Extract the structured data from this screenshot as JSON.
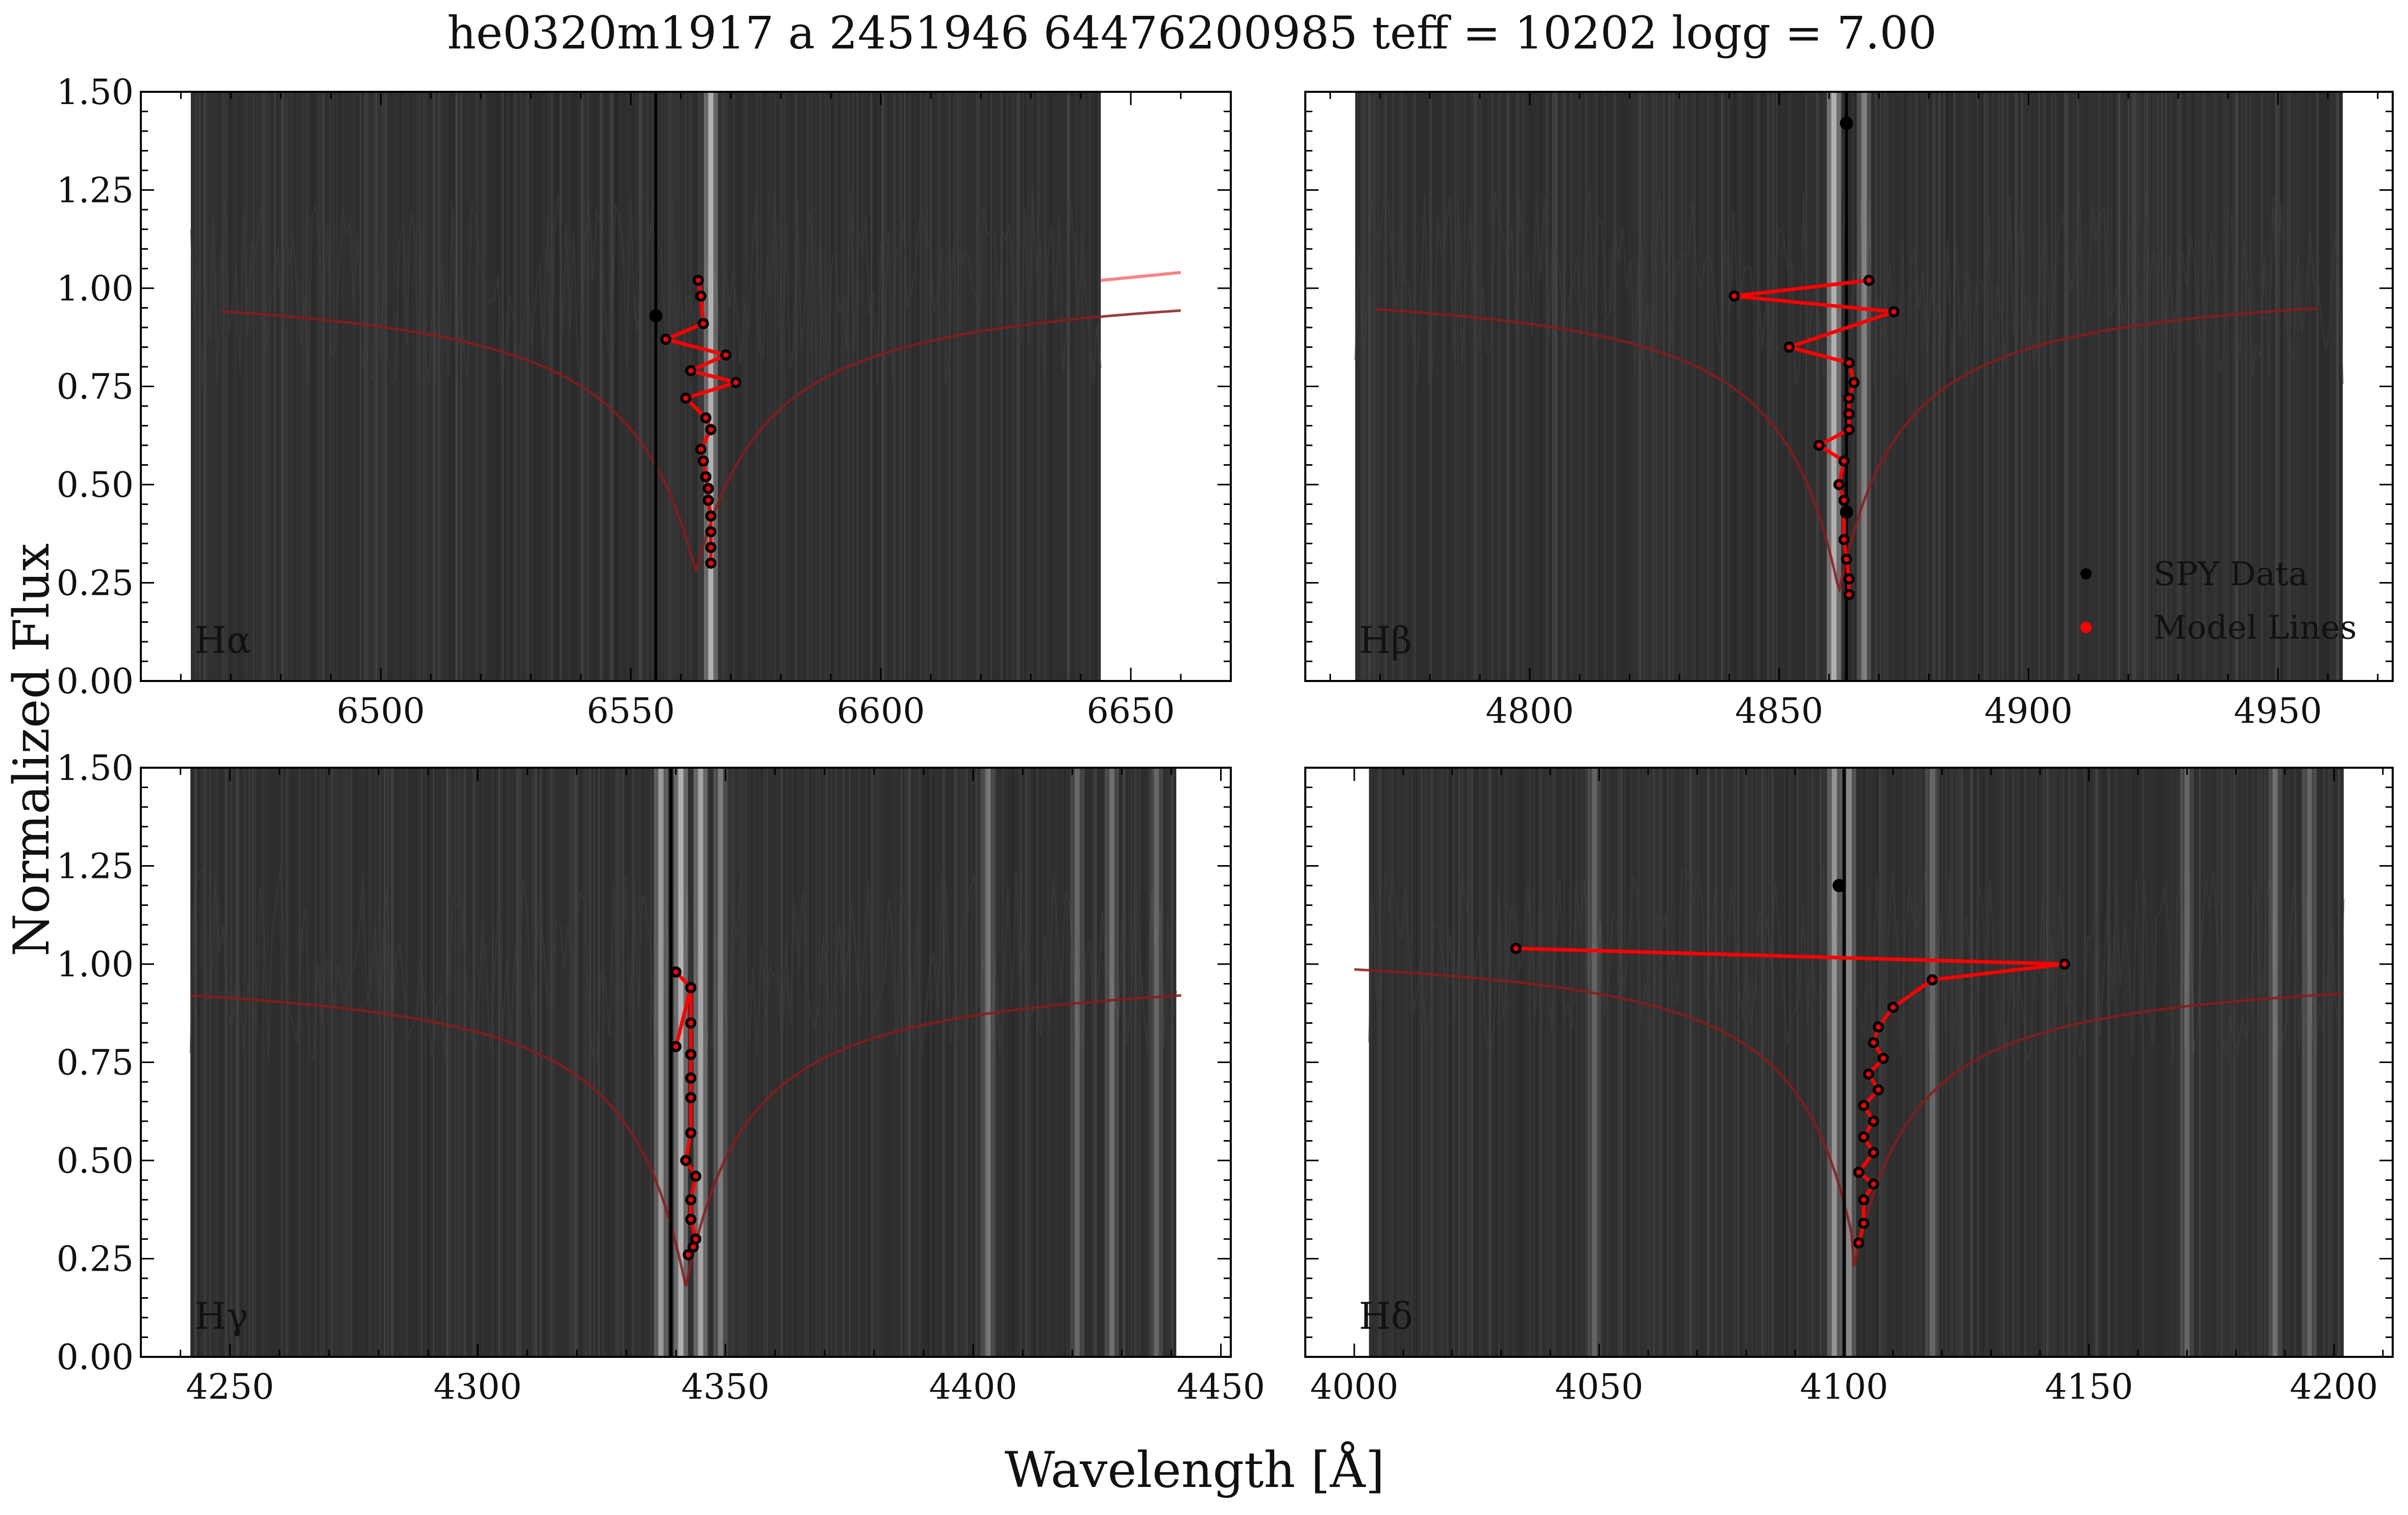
{
  "figure": {
    "title": "he0320m1917 a 2451946 64476200985 teff = 10202 logg = 7.00",
    "xlabel": "Wavelength [Å]",
    "ylabel": "Normalized Flux"
  },
  "legend": {
    "placement": "lower-right of Hβ panel",
    "entries": [
      {
        "label": "SPY Data",
        "color": "#000000"
      },
      {
        "label": "Model Lines",
        "color": "#ff0000"
      }
    ]
  },
  "colors": {
    "data_marker": "#000000",
    "model_line": "#ff0000",
    "model_curve": "#8b1a1a",
    "background_fill": "#2e2e2e",
    "vertical_marker": "#000000"
  },
  "chart_data": [
    {
      "type": "line",
      "label": "Hα",
      "xlim": [
        6452,
        6670
      ],
      "ylim": [
        0,
        1.5
      ],
      "xticks": [
        6500,
        6550,
        6600,
        6650
      ],
      "yticks": [
        "0.00",
        "0.25",
        "0.50",
        "0.75",
        "1.00",
        "1.25",
        "1.50"
      ],
      "shade_range": [
        6462,
        6644
      ],
      "bright_streaks": [
        {
          "x": 6566,
          "strength": 0.8
        }
      ],
      "vertical_line": 6555,
      "model_curve": {
        "center": 6563,
        "depth": 0.75,
        "width": 14,
        "xmin": 6468,
        "xmax": 6660,
        "cont_left": 1.03,
        "cont_right": 1.03
      },
      "model_curve_extension": {
        "x": [
          6644,
          6660
        ],
        "y": [
          1.02,
          1.04
        ]
      },
      "extra_points": [
        {
          "x": 6555,
          "y": 0.93
        }
      ],
      "model_path": {
        "x": [
          6563.5,
          6564,
          6564.5,
          6557,
          6569,
          6562,
          6571,
          6561,
          6565,
          6566,
          6564,
          6564.5,
          6565,
          6565.5,
          6565.5,
          6566,
          6566,
          6566,
          6566
        ],
        "y": [
          1.02,
          0.98,
          0.91,
          0.87,
          0.83,
          0.79,
          0.76,
          0.72,
          0.67,
          0.64,
          0.59,
          0.56,
          0.52,
          0.49,
          0.46,
          0.42,
          0.38,
          0.34,
          0.3
        ]
      }
    },
    {
      "type": "line",
      "label": "Hβ",
      "xlim": [
        4755,
        4973
      ],
      "ylim": [
        0,
        1.5
      ],
      "xticks": [
        4800,
        4850,
        4900,
        4950
      ],
      "yticks": [],
      "shade_range": [
        4765,
        4963
      ],
      "bright_streaks": [
        {
          "x": 4861,
          "strength": 0.8
        },
        {
          "x": 4867,
          "strength": 0.45
        }
      ],
      "vertical_line": 4863.5,
      "model_curve": {
        "center": 4862,
        "depth": 0.8,
        "width": 12,
        "xmin": 4769,
        "xmax": 4958,
        "cont_left": 1.03,
        "cont_right": 1.03
      },
      "extra_points": [
        {
          "x": 4863.5,
          "y": 1.42
        },
        {
          "x": 4863.5,
          "y": 0.43
        }
      ],
      "model_path": {
        "x": [
          4868,
          4841,
          4873,
          4852,
          4864,
          4865,
          4864,
          4864,
          4864,
          4858,
          4863,
          4862,
          4863,
          4863,
          4863.5,
          4864,
          4864
        ],
        "y": [
          1.02,
          0.98,
          0.94,
          0.85,
          0.81,
          0.76,
          0.72,
          0.68,
          0.64,
          0.6,
          0.56,
          0.5,
          0.46,
          0.36,
          0.31,
          0.26,
          0.22
        ]
      }
    },
    {
      "type": "line",
      "label": "Hγ",
      "xlim": [
        4232,
        4452
      ],
      "ylim": [
        0,
        1.5
      ],
      "xticks": [
        4250,
        4300,
        4350,
        4400,
        4450
      ],
      "yticks": [
        "0.00",
        "0.25",
        "0.50",
        "0.75",
        "1.00",
        "1.25",
        "1.50"
      ],
      "shade_range": [
        4242,
        4441
      ],
      "bright_streaks": [
        {
          "x": 4337,
          "strength": 0.6
        },
        {
          "x": 4341,
          "strength": 0.8
        },
        {
          "x": 4345,
          "strength": 0.7
        },
        {
          "x": 4349,
          "strength": 0.4
        },
        {
          "x": 4403,
          "strength": 0.35
        },
        {
          "x": 4421,
          "strength": 0.3
        },
        {
          "x": 4428,
          "strength": 0.35
        },
        {
          "x": 4437,
          "strength": 0.3
        }
      ],
      "vertical_line": 4339,
      "model_curve": {
        "center": 4342,
        "depth": 0.82,
        "width": 12,
        "xmin": 4242,
        "xmax": 4442,
        "cont_left": 1.0,
        "cont_right": 1.0
      },
      "extra_points": [],
      "model_path": {
        "x": [
          4340,
          4343,
          4340,
          4343,
          4343,
          4343,
          4343,
          4343,
          4343,
          4342,
          4344,
          4343,
          4343,
          4344,
          4343.5,
          4342.5
        ],
        "y": [
          0.98,
          0.94,
          0.79,
          0.94,
          0.85,
          0.77,
          0.71,
          0.66,
          0.57,
          0.5,
          0.46,
          0.4,
          0.35,
          0.3,
          0.28,
          0.26
        ]
      }
    },
    {
      "type": "line",
      "label": "Hδ",
      "xlim": [
        3990,
        4212
      ],
      "ylim": [
        0,
        1.5
      ],
      "xticks": [
        4000,
        4050,
        4100,
        4150,
        4200
      ],
      "yticks": [],
      "shade_range": [
        4003,
        4202
      ],
      "bright_streaks": [
        {
          "x": 4098,
          "strength": 0.6
        },
        {
          "x": 4101,
          "strength": 0.5
        },
        {
          "x": 4049,
          "strength": 0.3
        },
        {
          "x": 4118,
          "strength": 0.3
        },
        {
          "x": 4170,
          "strength": 0.3
        },
        {
          "x": 4188,
          "strength": 0.35
        },
        {
          "x": 4195,
          "strength": 0.3
        }
      ],
      "vertical_line": 4100,
      "model_curve": {
        "center": 4102,
        "depth": 0.77,
        "width": 12,
        "xmin": 4000,
        "xmax": 4202,
        "cont_left": 1.06,
        "cont_right": 1.0
      },
      "extra_points": [
        {
          "x": 4099,
          "y": 1.2
        }
      ],
      "model_path": {
        "x": [
          4033,
          4145,
          4118,
          4110,
          4107,
          4106,
          4108,
          4105,
          4107,
          4104,
          4106,
          4104,
          4106,
          4103,
          4106,
          4104,
          4104,
          4103
        ],
        "y": [
          1.04,
          1.0,
          0.96,
          0.89,
          0.84,
          0.8,
          0.76,
          0.72,
          0.68,
          0.64,
          0.6,
          0.56,
          0.52,
          0.47,
          0.44,
          0.4,
          0.34,
          0.29
        ]
      }
    }
  ]
}
